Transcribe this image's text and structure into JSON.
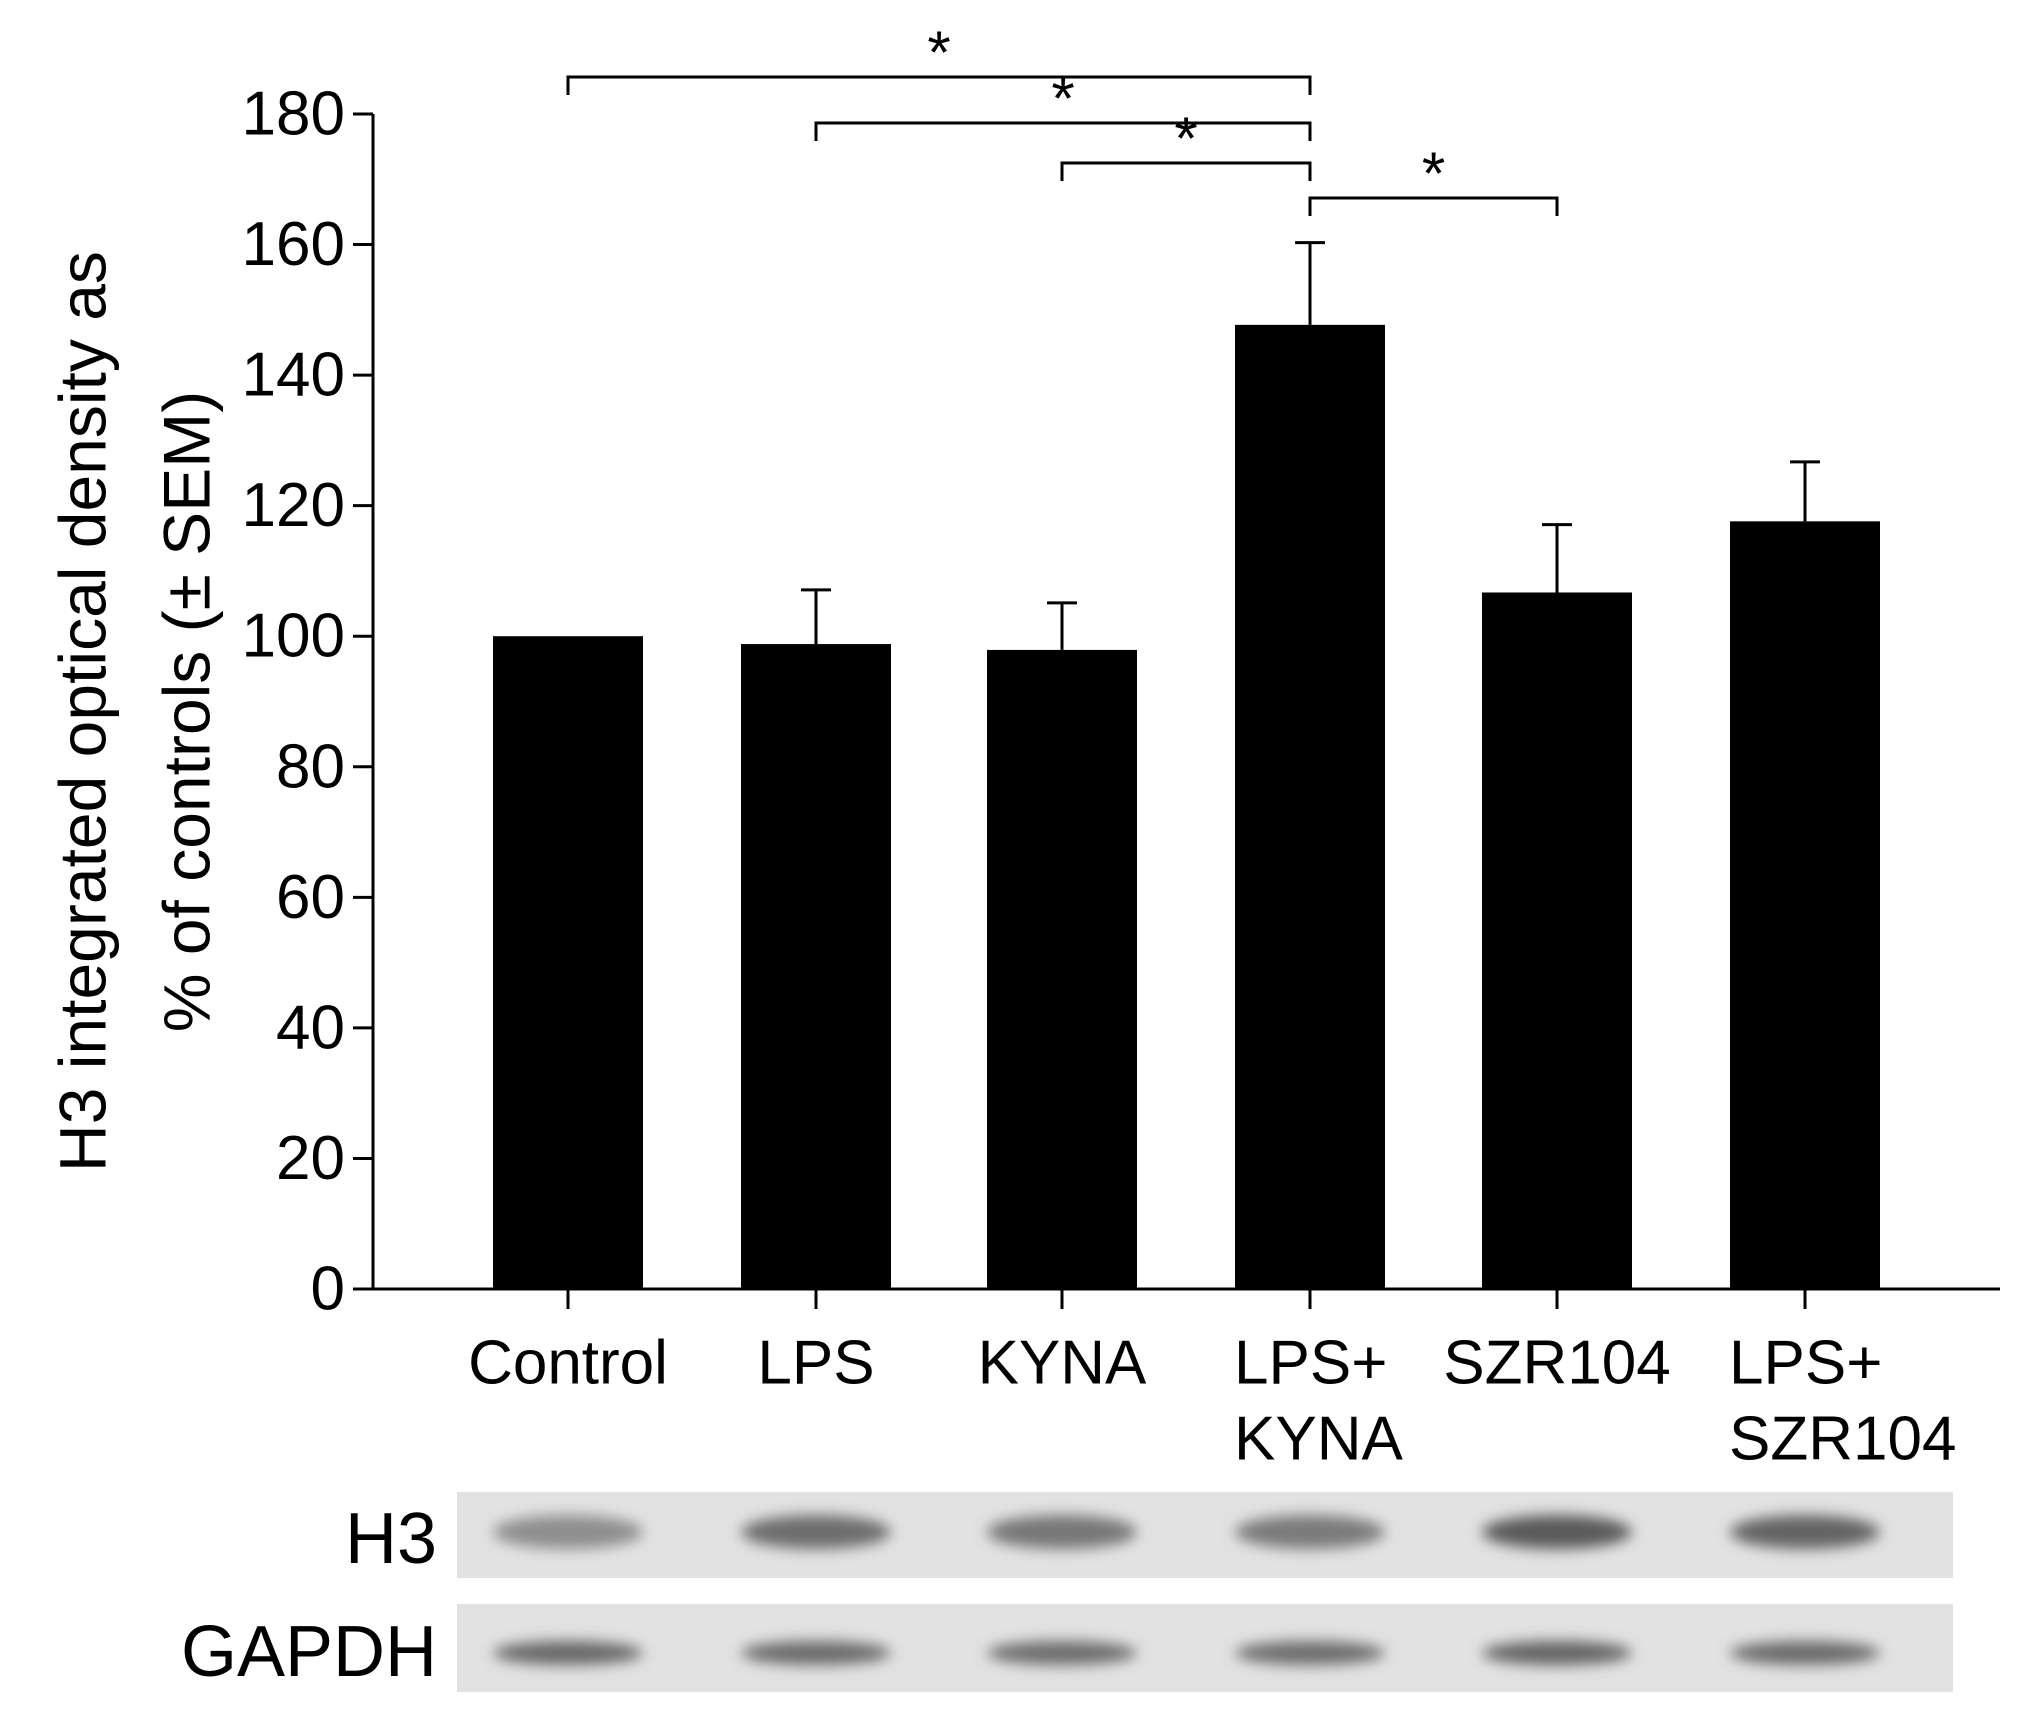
{
  "chart_data": {
    "type": "bar",
    "ylabel_lines": [
      "H3 integrated optical density as",
      "% of controls (± SEM)"
    ],
    "xlabel": "",
    "ylim": [
      0,
      180
    ],
    "ytick_step": 20,
    "categories": [
      [
        "Control"
      ],
      [
        "LPS"
      ],
      [
        "KYNA"
      ],
      [
        "LPS+",
        "KYNA"
      ],
      [
        "SZR104"
      ],
      [
        "LPS+",
        "SZR104"
      ]
    ],
    "values": [
      100,
      98.8,
      97.9,
      147.7,
      106.7,
      117.6
    ],
    "errors": [
      0,
      8.3,
      7.2,
      12.6,
      10.4,
      9.1
    ],
    "bar_color": "#000000",
    "significance": [
      {
        "from": 0,
        "to": 3,
        "label": "*"
      },
      {
        "from": 1,
        "to": 3,
        "label": "*"
      },
      {
        "from": 2,
        "to": 3,
        "label": "*"
      },
      {
        "from": 3,
        "to": 4,
        "label": "*"
      }
    ],
    "blot_rows": [
      {
        "label": "H3",
        "band_intensity": [
          0.45,
          0.7,
          0.62,
          0.6,
          0.85,
          0.78
        ]
      },
      {
        "label": "GAPDH",
        "band_intensity": [
          0.75,
          0.72,
          0.7,
          0.7,
          0.78,
          0.72
        ]
      }
    ]
  }
}
